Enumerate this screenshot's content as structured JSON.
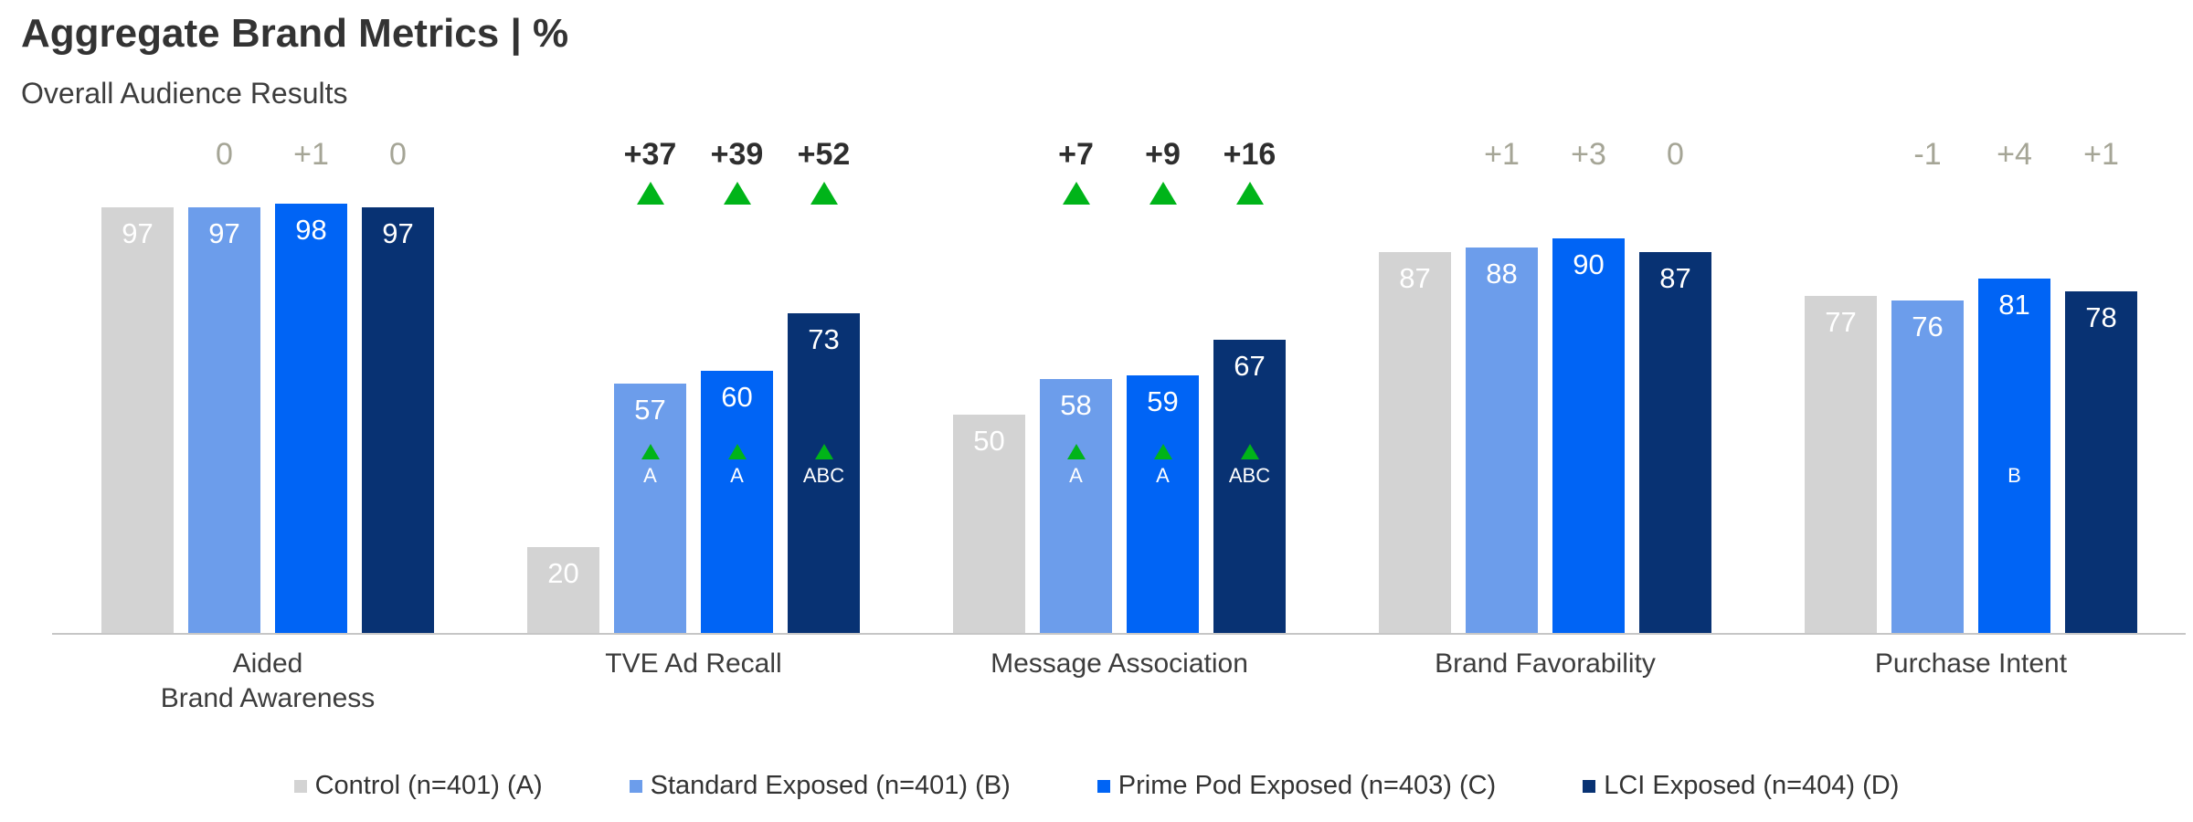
{
  "title": "Aggregate Brand Metrics | %",
  "subtitle": "Overall Audience Results",
  "colors": {
    "control": "#d3d3d3",
    "standard_exposed": "#6c9deb",
    "prime_pod_exposed": "#0064f5",
    "lci_exposed": "#083273",
    "significance_green": "#00b419",
    "delta_muted": "#a5a596",
    "delta_strong": "#2e2e2e"
  },
  "chart_data": {
    "type": "bar",
    "title": "Aggregate Brand Metrics | %",
    "subtitle": "Overall Audience Results",
    "ylim": [
      0,
      100
    ],
    "grid": false,
    "value_labels": "inside-top",
    "legend_position": "bottom",
    "categories": [
      "Aided\nBrand Awareness",
      "TVE Ad Recall",
      "Message Association",
      "Brand Favorability",
      "Purchase Intent"
    ],
    "series": [
      {
        "name": "Control (n=401) (A)",
        "color_key": "control",
        "values": [
          97,
          20,
          50,
          87,
          77
        ]
      },
      {
        "name": "Standard Exposed (n=401) (B)",
        "color_key": "standard_exposed",
        "values": [
          97,
          57,
          58,
          88,
          76
        ]
      },
      {
        "name": "Prime Pod Exposed (n=403) (C)",
        "color_key": "prime_pod_exposed",
        "values": [
          98,
          60,
          59,
          90,
          81
        ]
      },
      {
        "name": "LCI Exposed (n=404) (D)",
        "color_key": "lci_exposed",
        "values": [
          97,
          73,
          67,
          87,
          78
        ]
      }
    ],
    "deltas_vs_control": [
      {
        "category": "Aided\nBrand Awareness",
        "labels": [
          "0",
          "+1",
          "0"
        ],
        "significant": false
      },
      {
        "category": "TVE Ad Recall",
        "labels": [
          "+37",
          "+39",
          "+52"
        ],
        "significant": true
      },
      {
        "category": "Message Association",
        "labels": [
          "+7",
          "+9",
          "+16"
        ],
        "significant": true
      },
      {
        "category": "Brand Favorability",
        "labels": [
          "+1",
          "+3",
          "0"
        ],
        "significant": false
      },
      {
        "category": "Purchase Intent",
        "labels": [
          "-1",
          "+4",
          "+1"
        ],
        "significant": false
      }
    ],
    "in_bar_significance": [
      {
        "category_index": 1,
        "series_index": 1,
        "triangle": true,
        "label": "A"
      },
      {
        "category_index": 1,
        "series_index": 2,
        "triangle": true,
        "label": "A"
      },
      {
        "category_index": 1,
        "series_index": 3,
        "triangle": true,
        "label": "ABC"
      },
      {
        "category_index": 2,
        "series_index": 1,
        "triangle": true,
        "label": "A"
      },
      {
        "category_index": 2,
        "series_index": 2,
        "triangle": true,
        "label": "A"
      },
      {
        "category_index": 2,
        "series_index": 3,
        "triangle": true,
        "label": "ABC"
      },
      {
        "category_index": 4,
        "series_index": 2,
        "triangle": false,
        "label": "B"
      }
    ]
  },
  "legend": {
    "items": [
      {
        "label": "Control (n=401) (A)",
        "color_key": "control"
      },
      {
        "label": "Standard Exposed (n=401) (B)",
        "color_key": "standard_exposed"
      },
      {
        "label": "Prime Pod Exposed (n=403) (C)",
        "color_key": "prime_pod_exposed"
      },
      {
        "label": "LCI Exposed (n=404) (D)",
        "color_key": "lci_exposed"
      }
    ]
  }
}
